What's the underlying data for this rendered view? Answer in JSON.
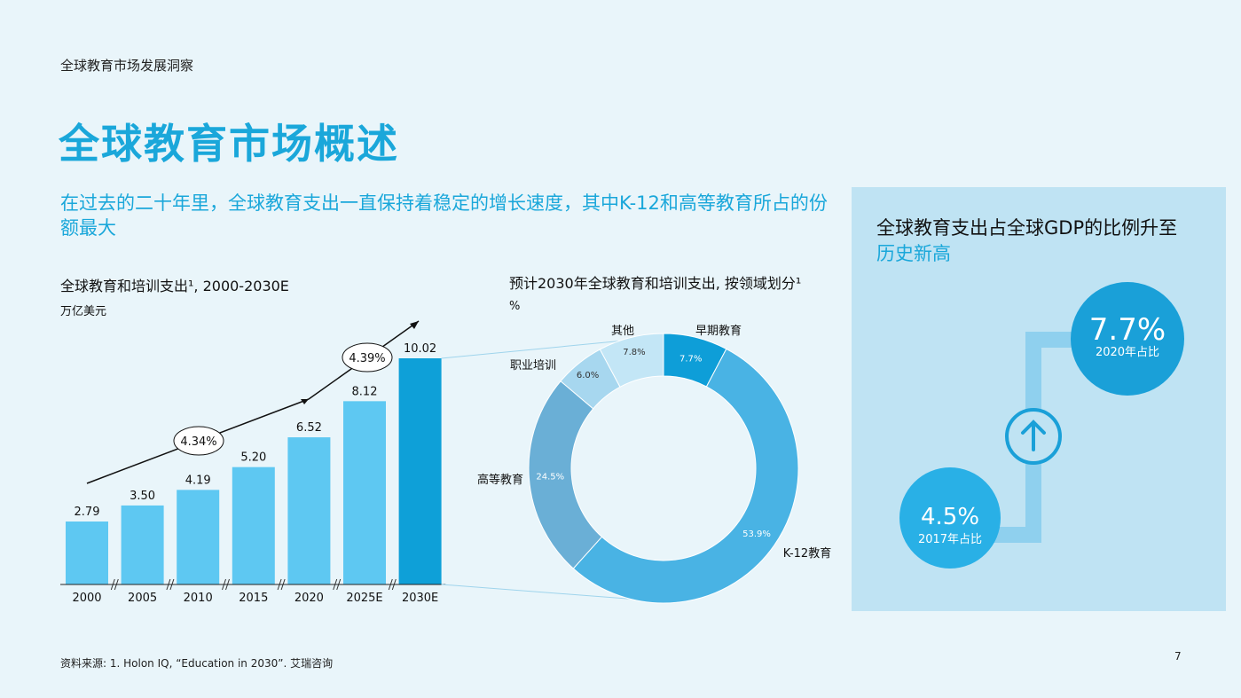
{
  "header": {
    "kicker": "全球教育市场发展洞察",
    "title": "全球教育市场概述",
    "subtitle": "在过去的二十年里，全球教育支出一直保持着稳定的增长速度，其中K-12和高等教育所占的份额最大"
  },
  "chart_data": [
    {
      "type": "bar",
      "title": "全球教育和培训支出¹, 2000-2030E",
      "ylabel": "万亿美元",
      "categories": [
        "2000",
        "2005",
        "2010",
        "2015",
        "2020",
        "2025E",
        "2030E"
      ],
      "values": [
        2.79,
        3.5,
        4.19,
        5.2,
        6.52,
        8.12,
        10.02
      ],
      "value_labels": [
        "2.79",
        "3.50",
        "4.19",
        "5.20",
        "6.52",
        "8.12",
        "10.02"
      ],
      "ylim": [
        0,
        11
      ],
      "grid": false,
      "colors": {
        "bar": "#5ec8f2",
        "highlight": "#0ea0d8"
      },
      "annotations": [
        {
          "text": "4.34%",
          "span": [
            "2000",
            "2020"
          ]
        },
        {
          "text": "4.39%",
          "span": [
            "2020",
            "2030E"
          ]
        }
      ]
    },
    {
      "type": "pie",
      "title": "预计2030年全球教育和培训支出, 按领域划分¹",
      "unit": "%",
      "slices": [
        {
          "label": "早期教育",
          "value": 7.7,
          "value_label": "7.7%",
          "color": "#0e9ed8"
        },
        {
          "label": "K-12教育",
          "value": 53.9,
          "value_label": "53.9%",
          "color": "#49b3e4"
        },
        {
          "label": "高等教育",
          "value": 24.5,
          "value_label": "24.5%",
          "color": "#6aafd6"
        },
        {
          "label": "职业培训",
          "value": 6.0,
          "value_label": "6.0%",
          "color": "#a7d7ef"
        },
        {
          "label": "其他",
          "value": 7.8,
          "value_label": "7.8%",
          "color": "#c3e6f6"
        }
      ]
    }
  ],
  "panel": {
    "title_a": "全球教育支出占全球GDP的比例升至",
    "title_b": "历史新高",
    "big_value": "7.7%",
    "big_label": "2020年占比",
    "small_value": "4.5%",
    "small_label": "2017年占比"
  },
  "footer": {
    "source": "资料来源: 1. Holon IQ, “Education in 2030”. 艾瑞咨询",
    "page": "7"
  }
}
